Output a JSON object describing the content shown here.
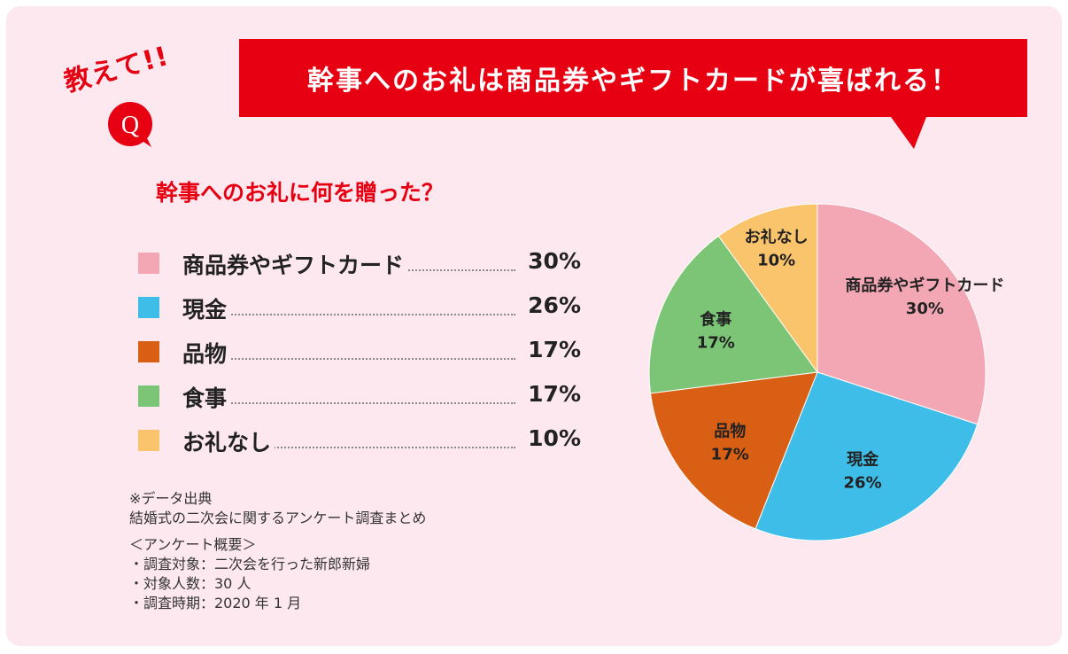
{
  "tag": {
    "text": "教えて!!",
    "q_letter": "Q"
  },
  "banner": {
    "title": "幹事へのお礼は商品券やギフトカードが喜ばれる！",
    "color": "#e60012"
  },
  "question": "幹事へのお礼に何を贈った？",
  "notes": {
    "source_heading": "※データ出典",
    "source_name": "結婚式の二次会に関するアンケート調査まとめ",
    "outline_heading": "＜アンケート概要＞",
    "items": [
      "・調査対象：二次会を行った新郎新婦",
      "・対象人数：30 人",
      "・調査時期：2020 年 1 月"
    ]
  },
  "chart_data": {
    "type": "pie",
    "title": "",
    "categories": [
      "商品券やギフトカード",
      "現金",
      "品物",
      "食事",
      "お礼なし"
    ],
    "values": [
      30,
      26,
      17,
      17,
      10
    ],
    "value_labels": [
      "30%",
      "26%",
      "17%",
      "17%",
      "10%"
    ],
    "colors": [
      "#f3a7b5",
      "#3dbde8",
      "#d95f14",
      "#7cc576",
      "#f9c46b"
    ],
    "start": "12 o'clock, clockwise",
    "legend_position": "left"
  }
}
